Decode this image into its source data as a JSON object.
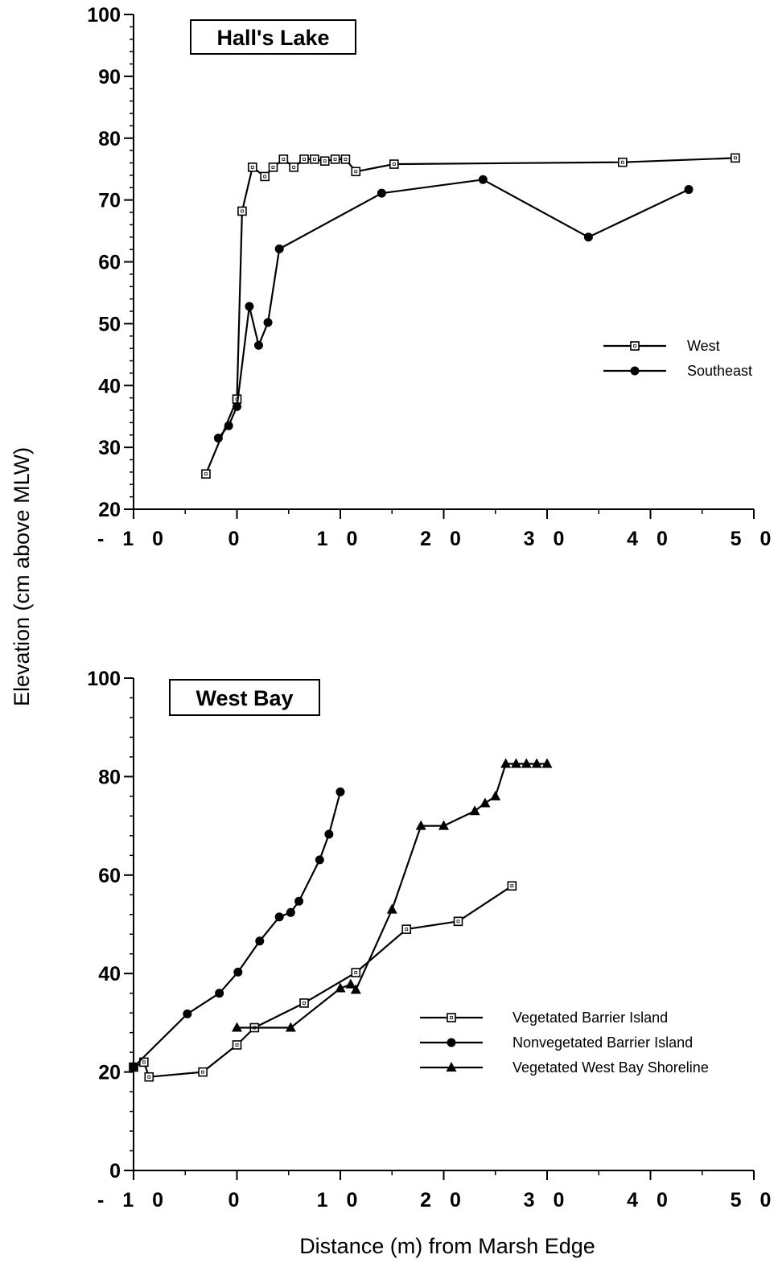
{
  "figure": {
    "ylabel": "Elevation (cm above MLW)",
    "xlabel": "Distance (m) from Marsh Edge"
  },
  "chart_data": [
    {
      "type": "line",
      "title": "Hall's Lake",
      "xlabel": "Distance (m) from Marsh Edge",
      "ylabel": "Elevation (cm above MLW)",
      "xlim": [
        -10,
        50
      ],
      "ylim": [
        20,
        100
      ],
      "x_ticks": [
        -10,
        0,
        10,
        20,
        30,
        40,
        50
      ],
      "x_tick_labels": [
        "- 1 0",
        "0",
        "1 0",
        "2 0",
        "3 0",
        "4 0",
        "5 0"
      ],
      "y_ticks": [
        20,
        30,
        40,
        50,
        60,
        70,
        80,
        90,
        100
      ],
      "y_tick_labels": [
        "20",
        "30",
        "40",
        "50",
        "60",
        "70",
        "80",
        "90",
        "100"
      ],
      "y_minor_step": 2,
      "legend_position": "right",
      "series": [
        {
          "name": "West",
          "marker": "square-open",
          "points": [
            [
              -3,
              25.7
            ],
            [
              0,
              37.8
            ],
            [
              0.5,
              68.2
            ],
            [
              1.5,
              75.3
            ],
            [
              2.7,
              73.8
            ],
            [
              3.5,
              75.3
            ],
            [
              4.5,
              76.6
            ],
            [
              5.5,
              75.3
            ],
            [
              6.5,
              76.6
            ],
            [
              7.5,
              76.6
            ],
            [
              8.5,
              76.3
            ],
            [
              9.5,
              76.6
            ],
            [
              10.5,
              76.6
            ],
            [
              11.5,
              74.6
            ],
            [
              15.2,
              75.8
            ],
            [
              37.3,
              76.1
            ],
            [
              48.2,
              76.8
            ]
          ]
        },
        {
          "name": "Southeast",
          "marker": "circle-filled",
          "points": [
            [
              -1.8,
              31.5
            ],
            [
              -0.8,
              33.5
            ],
            [
              0,
              36.6
            ],
            [
              1.2,
              52.8
            ],
            [
              2.1,
              46.5
            ],
            [
              3,
              50.2
            ],
            [
              4.1,
              62.1
            ],
            [
              14,
              71.1
            ],
            [
              23.8,
              73.3
            ],
            [
              34,
              64
            ],
            [
              43.7,
              71.7
            ]
          ]
        }
      ]
    },
    {
      "type": "line",
      "title": "West Bay",
      "xlabel": "Distance (m) from Marsh Edge",
      "ylabel": "Elevation (cm above MLW)",
      "xlim": [
        -10,
        50
      ],
      "ylim": [
        0,
        100
      ],
      "x_ticks": [
        -10,
        0,
        10,
        20,
        30,
        40,
        50
      ],
      "x_tick_labels": [
        "- 1 0",
        "0",
        "1 0",
        "2 0",
        "3 0",
        "4 0",
        "5 0"
      ],
      "y_ticks": [
        0,
        20,
        40,
        60,
        80,
        100
      ],
      "y_tick_labels": [
        "0",
        "20",
        "40",
        "60",
        "80",
        "100"
      ],
      "y_minor_step": 4,
      "legend_position": "lower-right",
      "series": [
        {
          "name": "Vegetated Barrier Island",
          "marker": "square-open",
          "points": [
            [
              -10,
              21
            ],
            [
              -9,
              22
            ],
            [
              -8.5,
              19
            ],
            [
              -3.3,
              20
            ],
            [
              0,
              25.5
            ],
            [
              1.7,
              29
            ],
            [
              6.5,
              34
            ],
            [
              11.5,
              40.2
            ],
            [
              16.4,
              49
            ],
            [
              21.4,
              50.6
            ],
            [
              26.6,
              57.8
            ]
          ]
        },
        {
          "name": "Nonvegetated Barrier Island",
          "marker": "circle-filled",
          "points": [
            [
              -10,
              21
            ],
            [
              -4.8,
              31.8
            ],
            [
              -1.7,
              36
            ],
            [
              0.1,
              40.3
            ],
            [
              2.2,
              46.6
            ],
            [
              4.1,
              51.5
            ],
            [
              5.2,
              52.4
            ],
            [
              6,
              54.7
            ],
            [
              8,
              63.1
            ],
            [
              8.9,
              68.3
            ],
            [
              10,
              76.9
            ]
          ]
        },
        {
          "name": "Vegetated West Bay Shoreline",
          "marker": "triangle-filled",
          "points": [
            [
              0,
              29
            ],
            [
              5.2,
              29
            ],
            [
              10,
              37
            ],
            [
              11,
              37.8
            ],
            [
              11.5,
              36.7
            ],
            [
              15,
              53
            ],
            [
              17.8,
              70
            ],
            [
              20,
              70
            ],
            [
              23,
              73
            ],
            [
              24,
              74.6
            ],
            [
              25,
              76
            ],
            [
              26,
              82.6
            ],
            [
              27,
              82.6
            ],
            [
              28,
              82.6
            ],
            [
              29,
              82.6
            ],
            [
              30,
              82.6
            ]
          ]
        }
      ]
    }
  ]
}
